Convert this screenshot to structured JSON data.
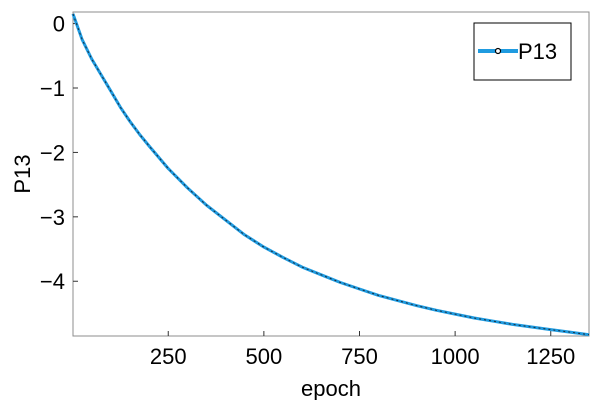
{
  "chart_data": {
    "type": "line",
    "title": "",
    "xlabel": "epoch",
    "ylabel": "P13",
    "xlim": [
      1,
      1350
    ],
    "ylim": [
      -4.85,
      0.18
    ],
    "grid": false,
    "legend_position": "top-right",
    "xticks": [
      250,
      500,
      750,
      1000,
      1250
    ],
    "xtick_labels": [
      "250",
      "500",
      "750",
      "1000",
      "1250"
    ],
    "yticks": [
      0,
      -1,
      -2,
      -3,
      -4
    ],
    "ytick_labels": [
      "0",
      "−1",
      "−2",
      "−3",
      "−4"
    ],
    "series": [
      {
        "name": "P13",
        "color": "#1f9be0",
        "x": [
          1,
          25,
          50,
          75,
          100,
          125,
          150,
          175,
          200,
          250,
          300,
          350,
          400,
          450,
          500,
          550,
          600,
          650,
          700,
          750,
          800,
          850,
          900,
          950,
          1000,
          1050,
          1100,
          1150,
          1200,
          1250,
          1300,
          1350
        ],
        "y": [
          0.15,
          -0.25,
          -0.55,
          -0.8,
          -1.05,
          -1.3,
          -1.52,
          -1.72,
          -1.9,
          -2.25,
          -2.55,
          -2.82,
          -3.05,
          -3.28,
          -3.47,
          -3.63,
          -3.78,
          -3.9,
          -4.02,
          -4.12,
          -4.22,
          -4.3,
          -4.38,
          -4.45,
          -4.51,
          -4.57,
          -4.62,
          -4.67,
          -4.71,
          -4.75,
          -4.79,
          -4.83
        ]
      }
    ]
  }
}
